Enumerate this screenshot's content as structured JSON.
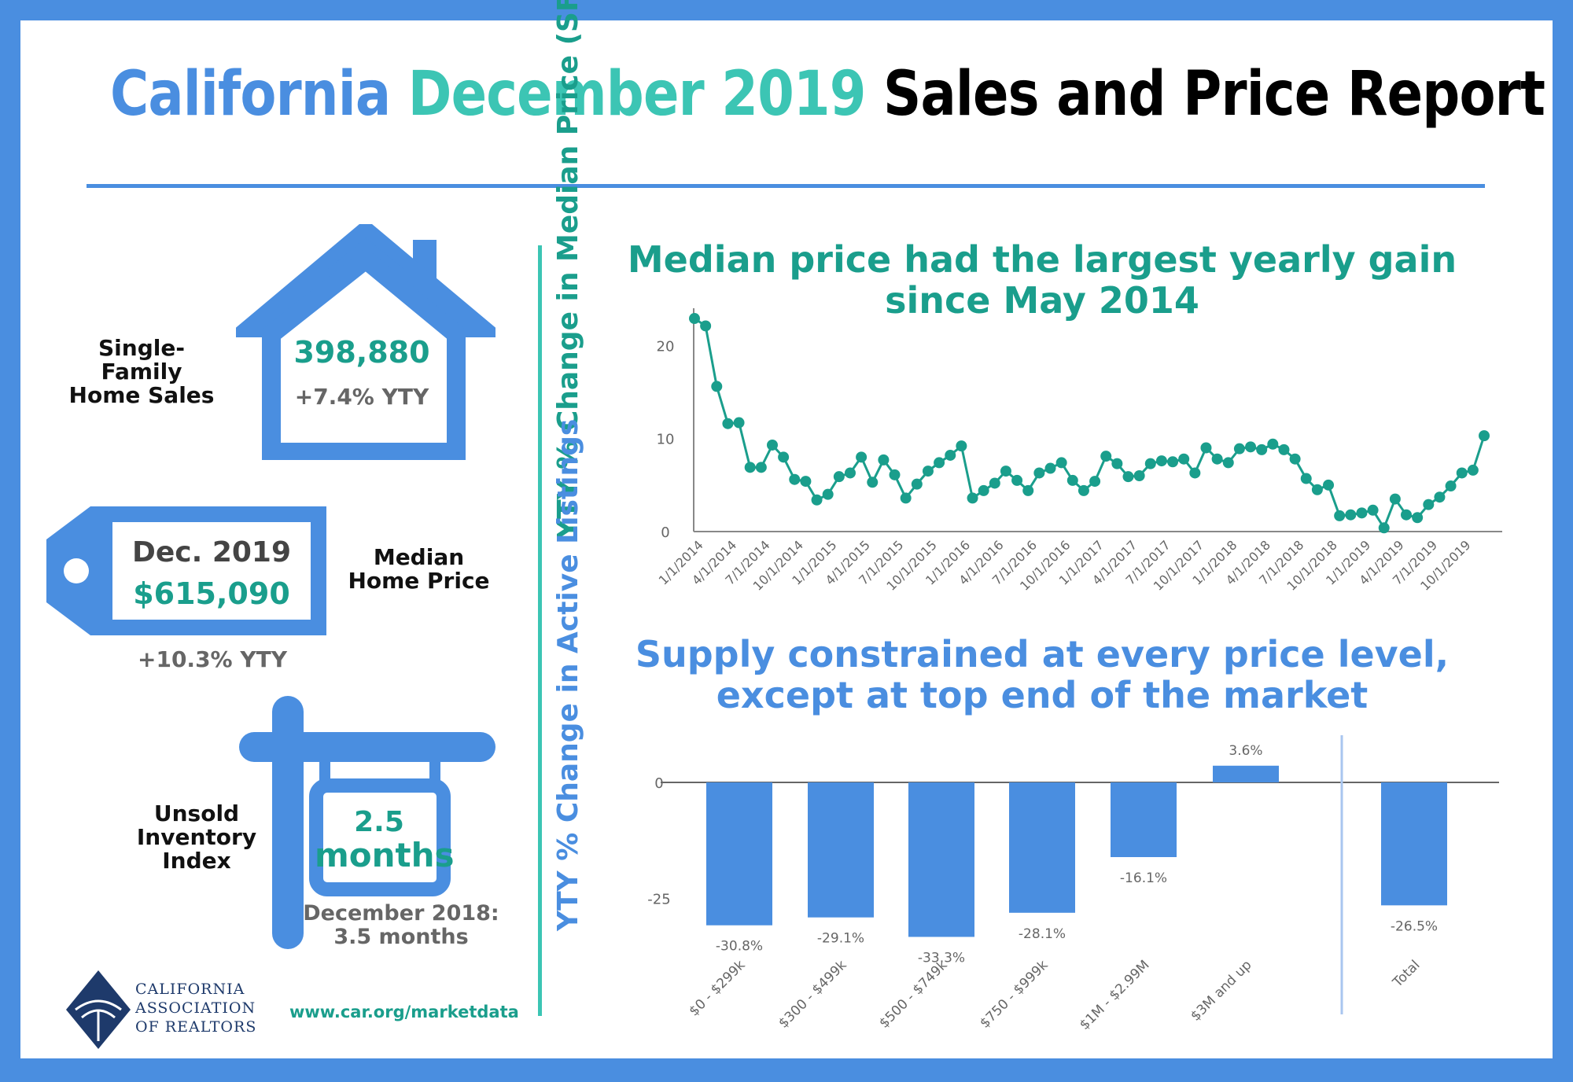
{
  "title": {
    "part1": "California",
    "part2": "December 2019",
    "part3": "Sales and Price Report"
  },
  "colors": {
    "blue": "#4a8ee0",
    "teal": "#3cc5b4",
    "dark_teal": "#1a9e8c"
  },
  "sales": {
    "label": "Single-\nFamily\nHome Sales",
    "value": "398,880",
    "change": "+7.4% YTY",
    "icon": "house-icon"
  },
  "price": {
    "label": "Median\nHome Price",
    "date": "Dec. 2019",
    "value": "$615,090",
    "change": "+10.3% YTY",
    "icon": "price-tag-icon"
  },
  "inventory": {
    "label": "Unsold\nInventory\nIndex",
    "value": "2.5",
    "unit": "months",
    "prior_label": "December 2018:",
    "prior_value": "3.5 months",
    "icon": "sign-post-icon"
  },
  "footer": {
    "logo_line1": "CALIFORNIA",
    "logo_line2": "ASSOCIATION",
    "logo_line3": "OF REALTORS",
    "url": "www.car.org/marketdata"
  },
  "chart_data": [
    {
      "type": "line",
      "title": "Median price had the largest yearly gain since May 2014",
      "ylabel": "YTY % Change in Median Price (SFH)",
      "xlabel": "",
      "ylim": [
        0,
        24
      ],
      "yticks": [
        0,
        10,
        20
      ],
      "xtick_labels": [
        "1/1/2014",
        "4/1/2014",
        "7/1/2014",
        "10/1/2014",
        "1/1/2015",
        "4/1/2015",
        "7/1/2015",
        "10/1/2015",
        "1/1/2016",
        "4/1/2016",
        "7/1/2016",
        "10/1/2016",
        "1/1/2017",
        "4/1/2017",
        "7/1/2017",
        "10/1/2017",
        "1/1/2018",
        "4/1/2018",
        "7/1/2018",
        "10/1/2018",
        "1/1/2019",
        "4/1/2019",
        "7/1/2019",
        "10/1/2019"
      ],
      "x_start": "1/1/2014",
      "x_step": "1 month",
      "grid": false,
      "series": [
        {
          "values": [
            22.9,
            22.1,
            15.6,
            11.6,
            11.7,
            6.9,
            6.9,
            9.3,
            8.0,
            5.6,
            5.4,
            3.4,
            4.0,
            5.9,
            6.3,
            8.0,
            5.3,
            7.7,
            6.1,
            3.6,
            5.1,
            6.5,
            7.4,
            8.2,
            9.2,
            3.6,
            4.4,
            5.2,
            6.5,
            5.5,
            4.4,
            6.3,
            6.8,
            7.4,
            5.5,
            4.4,
            5.4,
            8.1,
            7.3,
            5.9,
            6.0,
            7.3,
            7.6,
            7.5,
            7.8,
            6.3,
            9.0,
            7.8,
            7.4,
            8.9,
            9.1,
            8.8,
            9.4,
            8.8,
            7.8,
            5.7,
            4.5,
            5.0,
            1.7,
            1.8,
            2.0,
            2.3,
            0.4,
            3.5,
            1.8,
            1.5,
            2.9,
            3.7,
            4.9,
            6.3,
            6.6,
            10.3
          ]
        }
      ]
    },
    {
      "type": "bar",
      "title": "Supply constrained at every price level, except at top end of the market",
      "ylabel": "YTY % Change in Active Listings",
      "xlabel": "",
      "ylim": [
        -35,
        5
      ],
      "yticks": [
        0,
        -25
      ],
      "categories": [
        "$0 - $299k",
        "$300 - $499k",
        "$500 - $749k",
        "$750 - $999k",
        "$1M - $2.99M",
        "$3M and up",
        "Total"
      ],
      "values": [
        -30.8,
        -29.1,
        -33.3,
        -28.1,
        -16.1,
        3.6,
        -26.5
      ],
      "value_labels": [
        "-30.8%",
        "-29.1%",
        "-33.3%",
        "-28.1%",
        "-16.1%",
        "3.6%",
        "-26.5%"
      ]
    }
  ]
}
